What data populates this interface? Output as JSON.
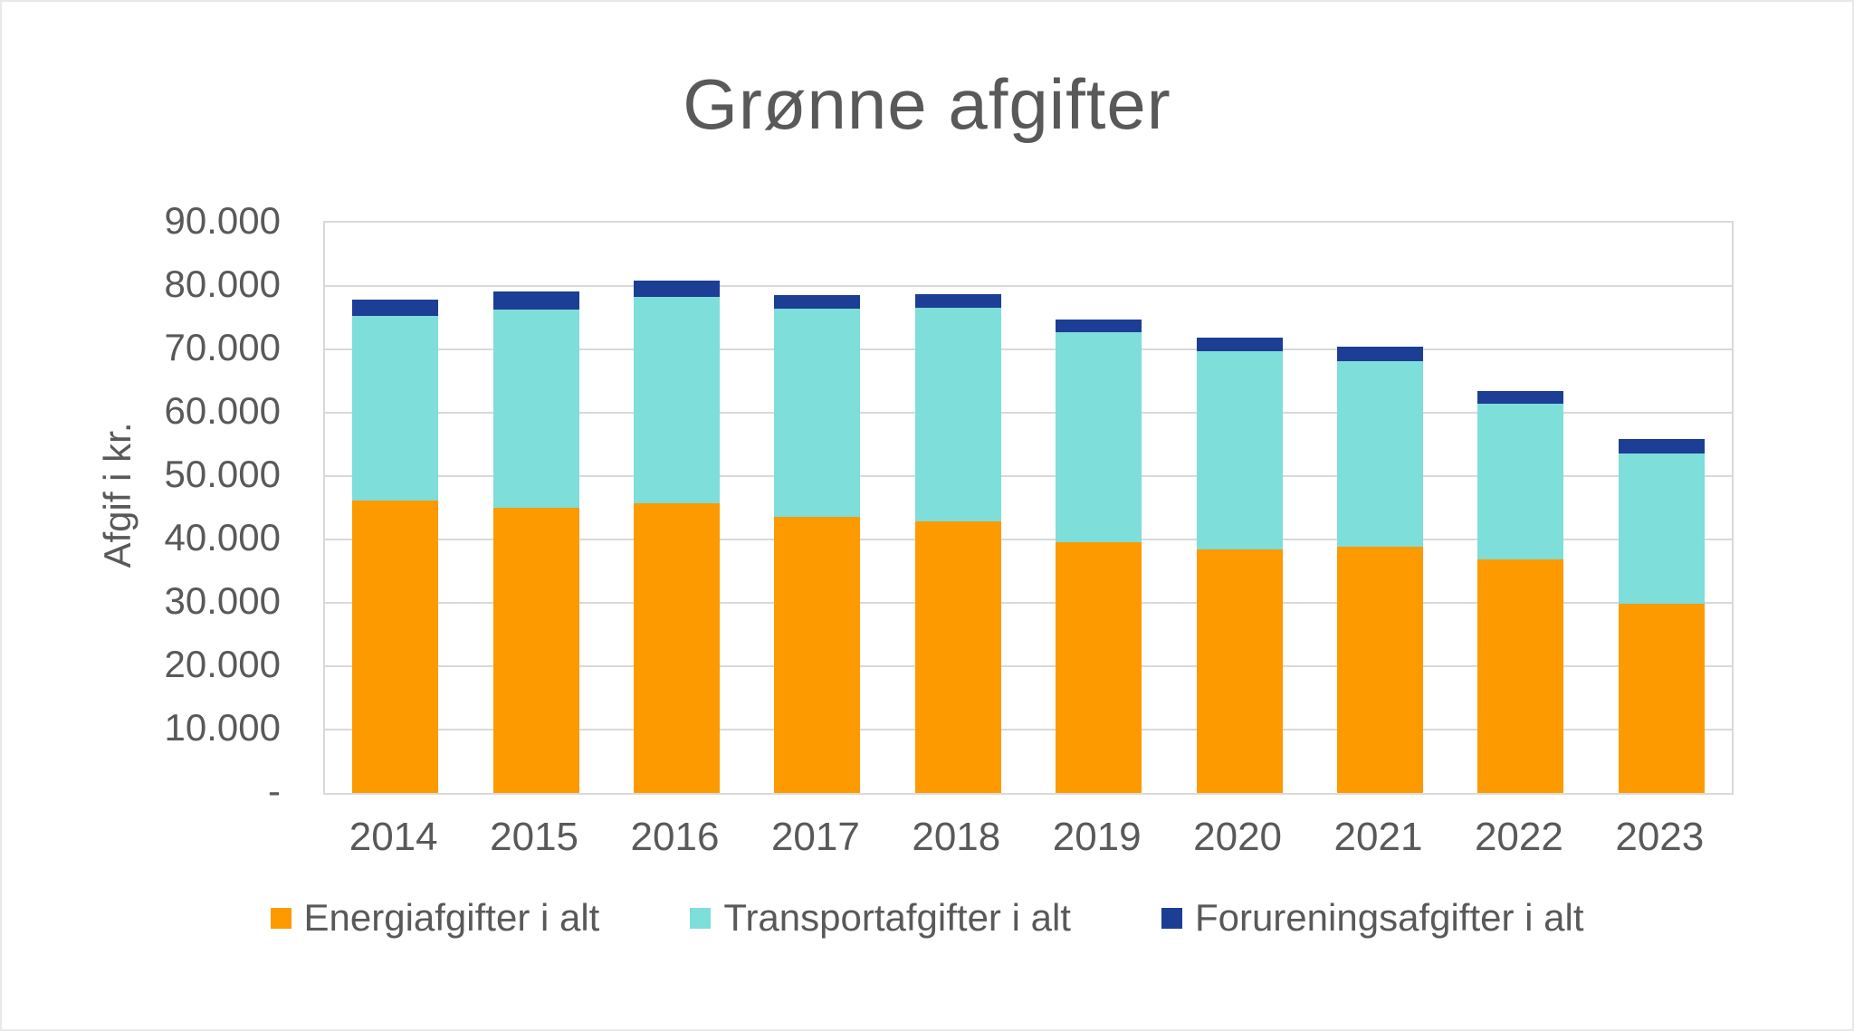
{
  "chart_data": {
    "type": "bar",
    "stacked": true,
    "title": "Grønne afgifter",
    "xlabel": "",
    "ylabel": "Afgif i kr.",
    "ylim": [
      0,
      90000
    ],
    "ytick_step": 10000,
    "grid": true,
    "legend_position": "bottom",
    "categories": [
      "2014",
      "2015",
      "2016",
      "2017",
      "2018",
      "2019",
      "2020",
      "2021",
      "2022",
      "2023"
    ],
    "series": [
      {
        "name": "Energiafgifter i alt",
        "color": "#FD9A00",
        "values": [
          46200,
          45000,
          45700,
          43600,
          42900,
          39600,
          38400,
          38800,
          36800,
          29900
        ]
      },
      {
        "name": "Transportafgifter i alt",
        "color": "#7DDEDA",
        "values": [
          29100,
          31300,
          32600,
          32800,
          33700,
          33100,
          31300,
          29300,
          24600,
          23700
        ]
      },
      {
        "name": "Forureningsafgifter i alt",
        "color": "#1C3E94",
        "values": [
          2500,
          2800,
          2600,
          2200,
          2100,
          2000,
          2100,
          2300,
          2000,
          2200
        ]
      }
    ],
    "yticks": [
      {
        "label": "90.000",
        "value": 90000
      },
      {
        "label": "80.000",
        "value": 80000
      },
      {
        "label": "70.000",
        "value": 70000
      },
      {
        "label": "60.000",
        "value": 60000
      },
      {
        "label": "50.000",
        "value": 50000
      },
      {
        "label": "40.000",
        "value": 40000
      },
      {
        "label": "30.000",
        "value": 30000
      },
      {
        "label": "20.000",
        "value": 20000
      },
      {
        "label": "10.000",
        "value": 10000
      },
      {
        "label": "-",
        "value": 0
      }
    ],
    "colors": {
      "text": "#595959",
      "gridline": "#D9D9D9"
    }
  }
}
